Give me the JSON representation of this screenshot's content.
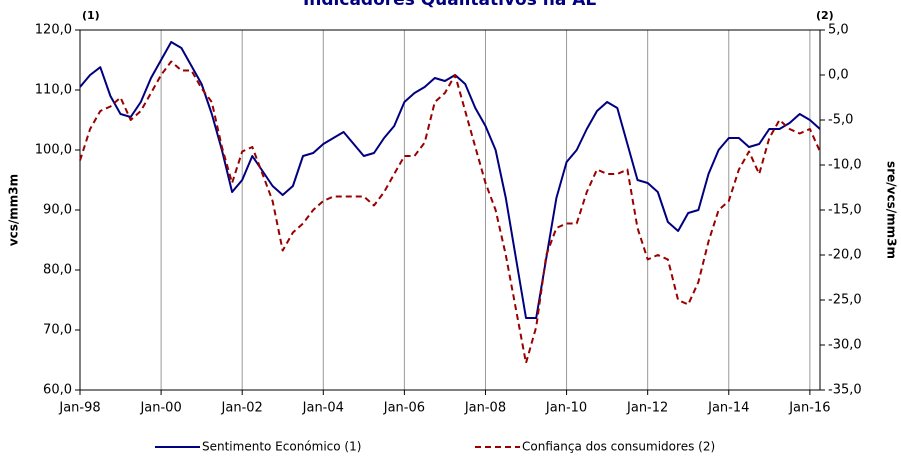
{
  "chart_data": {
    "type": "line",
    "title": "Indicadores Qualitativos na AE",
    "y_label": "vcs/mm3m",
    "y2_label": "sre/vcs/mm3m",
    "annotations": [
      "(1)",
      "(2)"
    ],
    "x": [
      "Jan-98",
      "Apr-98",
      "Jul-98",
      "Oct-98",
      "Jan-99",
      "Apr-99",
      "Jul-99",
      "Oct-99",
      "Jan-00",
      "Apr-00",
      "Jul-00",
      "Oct-00",
      "Jan-01",
      "Apr-01",
      "Jul-01",
      "Oct-01",
      "Jan-02",
      "Apr-02",
      "Jul-02",
      "Oct-02",
      "Jan-03",
      "Apr-03",
      "Jul-03",
      "Oct-03",
      "Jan-04",
      "Apr-04",
      "Jul-04",
      "Oct-04",
      "Jan-05",
      "Apr-05",
      "Jul-05",
      "Oct-05",
      "Jan-06",
      "Apr-06",
      "Jul-06",
      "Oct-06",
      "Jan-07",
      "Apr-07",
      "Jul-07",
      "Oct-07",
      "Jan-08",
      "Apr-08",
      "Jul-08",
      "Oct-08",
      "Jan-09",
      "Apr-09",
      "Jul-09",
      "Oct-09",
      "Jan-10",
      "Apr-10",
      "Jul-10",
      "Oct-10",
      "Jan-11",
      "Apr-11",
      "Jul-11",
      "Oct-11",
      "Jan-12",
      "Apr-12",
      "Jul-12",
      "Oct-12",
      "Jan-13",
      "Apr-13",
      "Jul-13",
      "Oct-13",
      "Jan-14",
      "Apr-14",
      "Jul-14",
      "Oct-14",
      "Jan-15",
      "Apr-15",
      "Jul-15",
      "Oct-15",
      "Jan-16",
      "Apr-16"
    ],
    "xticks": [
      "Jan-98",
      "Jan-00",
      "Jan-02",
      "Jan-04",
      "Jan-06",
      "Jan-08",
      "Jan-10",
      "Jan-12",
      "Jan-14",
      "Jan-16"
    ],
    "series": [
      {
        "name": "Sentimento Económico (1)",
        "color": "#000080",
        "dash": false,
        "axis": "y",
        "values": [
          110.5,
          112.5,
          113.8,
          109,
          106,
          105.5,
          108,
          112,
          115,
          118,
          117,
          114,
          111,
          106,
          100,
          93,
          95,
          99,
          96.5,
          94,
          92.5,
          94,
          99,
          99.5,
          101,
          102,
          103,
          101,
          99,
          99.5,
          102,
          104,
          108,
          109.5,
          110.5,
          112,
          111.5,
          112.5,
          111,
          107,
          104,
          100,
          92,
          82,
          72,
          72,
          82,
          92,
          98,
          100,
          103.5,
          106.5,
          108,
          107,
          101,
          95,
          94.5,
          93,
          88,
          86.5,
          89.5,
          90,
          96,
          100,
          102,
          102,
          100.5,
          101,
          103.5,
          103.5,
          104.5,
          106,
          105,
          103.5
        ]
      },
      {
        "name": "Confiança dos consumidores (2)",
        "color": "#990000",
        "dash": true,
        "axis": "y2",
        "values": [
          -9.5,
          -6,
          -4,
          -3.5,
          -2.5,
          -5,
          -4,
          -2,
          0,
          1.5,
          0.5,
          0.5,
          -1.5,
          -3,
          -8,
          -12,
          -8.5,
          -8,
          -11,
          -14,
          -19.5,
          -17.5,
          -16.5,
          -15,
          -14,
          -13.5,
          -13.5,
          -13.5,
          -13.5,
          -14.5,
          -13,
          -11,
          -9,
          -9,
          -7.5,
          -3,
          -2,
          0,
          -4,
          -8,
          -12,
          -15,
          -20,
          -26,
          -32,
          -28,
          -20,
          -17,
          -16.5,
          -16.5,
          -13,
          -10.5,
          -11,
          -11,
          -10.5,
          -17,
          -20.5,
          -20,
          -20.5,
          -25,
          -25.5,
          -23,
          -18.5,
          -15,
          -14,
          -10.5,
          -8.5,
          -11,
          -7,
          -5,
          -6,
          -6.5,
          -6,
          -8.5
        ]
      }
    ],
    "ylim": [
      60,
      120
    ],
    "yticks": [
      {
        "value": 60,
        "label": "60,0"
      },
      {
        "value": 70,
        "label": "70,0"
      },
      {
        "value": 80,
        "label": "80,0"
      },
      {
        "value": 90,
        "label": "90,0"
      },
      {
        "value": 100,
        "label": "100,0"
      },
      {
        "value": 110,
        "label": "110,0"
      },
      {
        "value": 120,
        "label": "120,0"
      }
    ],
    "y2lim": [
      -35,
      5
    ],
    "y2ticks": [
      {
        "value": -35,
        "label": "-35,0"
      },
      {
        "value": -30,
        "label": "-30,0"
      },
      {
        "value": -25,
        "label": "-25,0"
      },
      {
        "value": -20,
        "label": "-20,0"
      },
      {
        "value": -15,
        "label": "-15,0"
      },
      {
        "value": -10,
        "label": "-10,0"
      },
      {
        "value": -5,
        "label": "-5,0"
      },
      {
        "value": 0,
        "label": "0,0"
      },
      {
        "value": 5,
        "label": "5,0"
      }
    ],
    "grid": "x",
    "legend": "bottom"
  }
}
